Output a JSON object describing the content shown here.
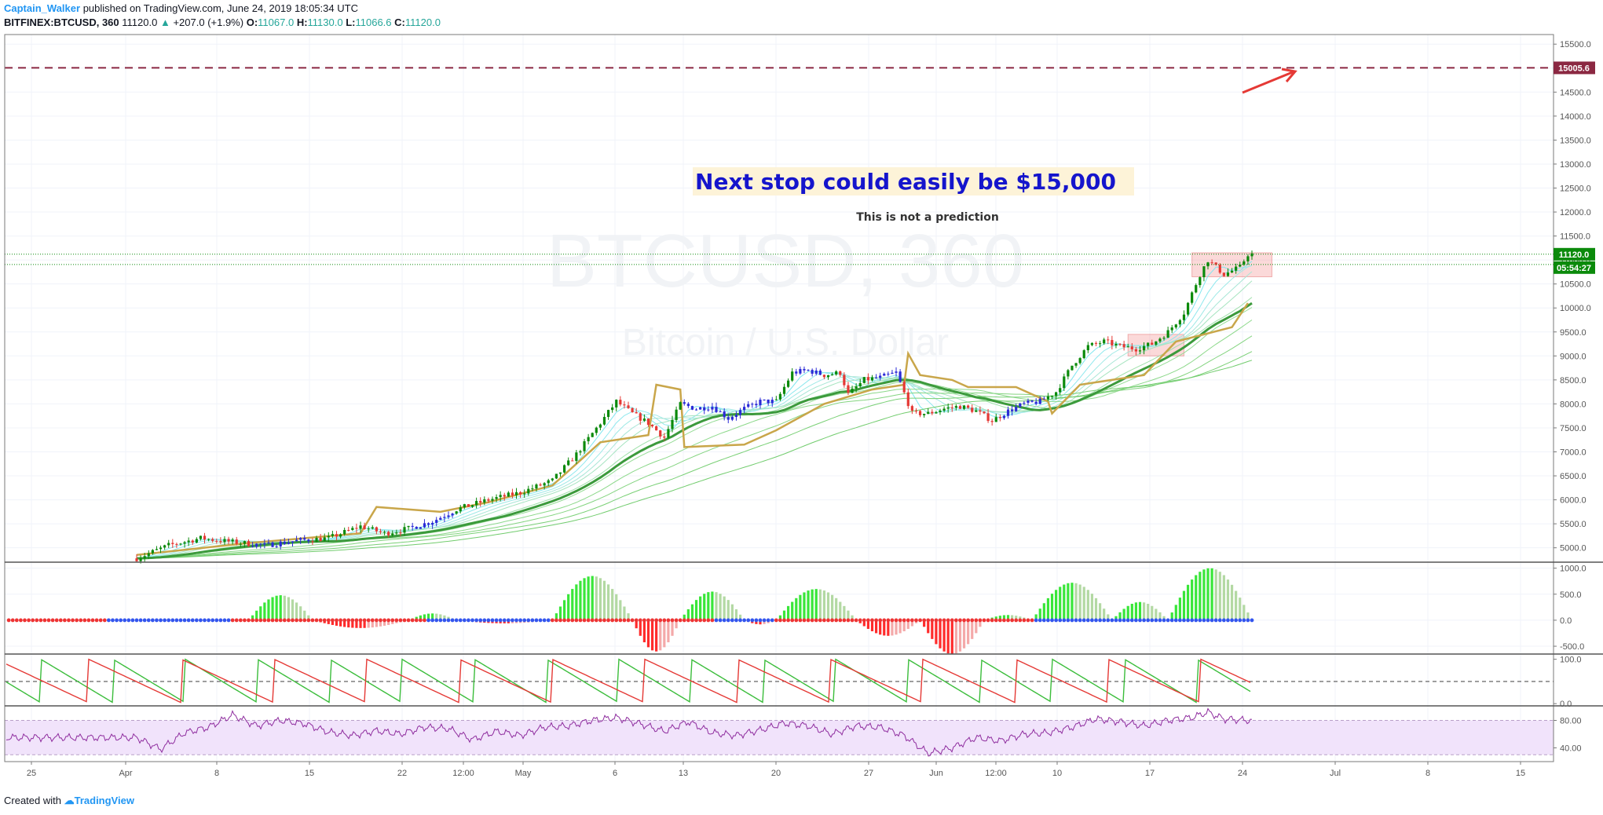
{
  "header": {
    "author": "Captain_Walker",
    "published": "published on TradingView.com, June 24, 2019 18:05:34 UTC",
    "symbol": "BITFINEX:BTCUSD, 360",
    "last": "11120.0",
    "change": "+207.0 (+1.9%)",
    "o_label": "O:",
    "o": "11067.0",
    "h_label": "H:",
    "h": "11130.0",
    "l_label": "L:",
    "l": "11066.6",
    "c_label": "C:",
    "c": "11120.0"
  },
  "footer": {
    "created_with": "Created with",
    "brand": "TradingView"
  },
  "colors": {
    "up": "#0b8a0b",
    "down": "#e53935",
    "blue": "#2b2bd6",
    "gold": "#c9a64a",
    "ema_dark": "#3c9a3c",
    "target": "#8b2842",
    "annotation": "#1515cc",
    "rsi_band": "#f1e3fb"
  },
  "chart_data": [
    {
      "type": "candlestick",
      "watermark_symbol": "BTCUSD, 360",
      "watermark_name": "Bitcoin / U.S. Dollar",
      "annotation_title": "Next stop could easily be $15,000",
      "annotation_sub": "This is not a prediction",
      "ylim": [
        4700,
        15700
      ],
      "y_ticks": [
        "5000.0",
        "5500.0",
        "6000.0",
        "6500.0",
        "7000.0",
        "7500.0",
        "8000.0",
        "8500.0",
        "9000.0",
        "9500.0",
        "10000.0",
        "10500.0",
        "11000.0",
        "11500.0",
        "12000.0",
        "12500.0",
        "13000.0",
        "13500.0",
        "14000.0",
        "14500.0",
        "15000.0",
        "15500.0"
      ],
      "target_level": 15005.6,
      "target_label": "15005.6",
      "price_label": "11120.0",
      "timer_label": "05:54:27",
      "price_line_2": 10905,
      "x_ticks": [
        "25",
        "Apr",
        "8",
        "15",
        "22",
        "12:00",
        "May",
        "6",
        "13",
        "20",
        "27",
        "Jun",
        "12:00",
        "10",
        "17",
        "24",
        "Jul",
        "8",
        "15"
      ],
      "trend": [
        {
          "t": 0,
          "v": 4780
        },
        {
          "t": 4,
          "v": 5050
        },
        {
          "t": 8,
          "v": 5200
        },
        {
          "t": 12,
          "v": 5120
        },
        {
          "t": 16,
          "v": 5050
        },
        {
          "t": 20,
          "v": 5150
        },
        {
          "t": 24,
          "v": 5200
        },
        {
          "t": 28,
          "v": 5450
        },
        {
          "t": 31,
          "v": 5300
        },
        {
          "t": 34,
          "v": 5400
        },
        {
          "t": 37,
          "v": 5550
        },
        {
          "t": 40,
          "v": 5800
        },
        {
          "t": 44,
          "v": 6000
        },
        {
          "t": 48,
          "v": 6150
        },
        {
          "t": 52,
          "v": 6400
        },
        {
          "t": 55,
          "v": 6950
        },
        {
          "t": 58,
          "v": 7600
        },
        {
          "t": 60,
          "v": 8050
        },
        {
          "t": 62,
          "v": 7800
        },
        {
          "t": 64,
          "v": 7600
        },
        {
          "t": 66,
          "v": 7300
        },
        {
          "t": 68,
          "v": 8000
        },
        {
          "t": 70,
          "v": 7900
        },
        {
          "t": 72,
          "v": 7950
        },
        {
          "t": 74,
          "v": 7700
        },
        {
          "t": 76,
          "v": 7900
        },
        {
          "t": 78,
          "v": 8050
        },
        {
          "t": 80,
          "v": 8050
        },
        {
          "t": 82,
          "v": 8650
        },
        {
          "t": 84,
          "v": 8700
        },
        {
          "t": 86,
          "v": 8600
        },
        {
          "t": 88,
          "v": 8650
        },
        {
          "t": 89,
          "v": 8200
        },
        {
          "t": 91,
          "v": 8500
        },
        {
          "t": 93,
          "v": 8550
        },
        {
          "t": 95,
          "v": 8650
        },
        {
          "t": 97,
          "v": 7800
        },
        {
          "t": 99,
          "v": 7800
        },
        {
          "t": 101,
          "v": 7900
        },
        {
          "t": 103,
          "v": 7950
        },
        {
          "t": 105,
          "v": 7850
        },
        {
          "t": 107,
          "v": 7650
        },
        {
          "t": 109,
          "v": 7850
        },
        {
          "t": 111,
          "v": 8000
        },
        {
          "t": 113,
          "v": 8050
        },
        {
          "t": 115,
          "v": 8250
        },
        {
          "t": 117,
          "v": 8800
        },
        {
          "t": 119,
          "v": 9200
        },
        {
          "t": 121,
          "v": 9300
        },
        {
          "t": 123,
          "v": 9200
        },
        {
          "t": 125,
          "v": 9150
        },
        {
          "t": 127,
          "v": 9250
        },
        {
          "t": 129,
          "v": 9500
        },
        {
          "t": 131,
          "v": 9900
        },
        {
          "t": 133,
          "v": 10700
        },
        {
          "t": 134,
          "v": 11000
        },
        {
          "t": 136,
          "v": 10700
        },
        {
          "t": 138,
          "v": 10850
        },
        {
          "t": 139,
          "v": 11120
        }
      ],
      "gold_line": [
        {
          "t": 0,
          "v": 4850
        },
        {
          "t": 14,
          "v": 5100
        },
        {
          "t": 28,
          "v": 5300
        },
        {
          "t": 30,
          "v": 5850
        },
        {
          "t": 38,
          "v": 5750
        },
        {
          "t": 44,
          "v": 5950
        },
        {
          "t": 52,
          "v": 6300
        },
        {
          "t": 58,
          "v": 7200
        },
        {
          "t": 64,
          "v": 7350
        },
        {
          "t": 65,
          "v": 8400
        },
        {
          "t": 68,
          "v": 8300
        },
        {
          "t": 68.5,
          "v": 7100
        },
        {
          "t": 76,
          "v": 7150
        },
        {
          "t": 80,
          "v": 7450
        },
        {
          "t": 86,
          "v": 8000
        },
        {
          "t": 92,
          "v": 8300
        },
        {
          "t": 96,
          "v": 8400
        },
        {
          "t": 96.5,
          "v": 9050
        },
        {
          "t": 98,
          "v": 8600
        },
        {
          "t": 102,
          "v": 8500
        },
        {
          "t": 104,
          "v": 8350
        },
        {
          "t": 110,
          "v": 8350
        },
        {
          "t": 114,
          "v": 8050
        },
        {
          "t": 114.5,
          "v": 7800
        },
        {
          "t": 118,
          "v": 8400
        },
        {
          "t": 126,
          "v": 8600
        },
        {
          "t": 130,
          "v": 9300
        },
        {
          "t": 137,
          "v": 9600
        },
        {
          "t": 139,
          "v": 10100
        }
      ],
      "red_boxes": [
        {
          "t0": 124,
          "t1": 131,
          "v0": 9000,
          "v1": 9450
        },
        {
          "t0": 132,
          "t1": 142,
          "v0": 10650,
          "v1": 11150
        }
      ]
    },
    {
      "type": "histogram",
      "y_ticks": [
        "1000.0",
        "500.0",
        "0.0",
        "-500.0"
      ],
      "ylim": [
        -650,
        1100
      ],
      "waves": [
        {
          "t0": 14,
          "t1": 22,
          "a": 480
        },
        {
          "t0": 22,
          "t1": 34,
          "a": -150
        },
        {
          "t0": 34,
          "t1": 40,
          "a": 130
        },
        {
          "t0": 40,
          "t1": 52,
          "a": -60
        },
        {
          "t0": 52,
          "t1": 62,
          "a": 850
        },
        {
          "t0": 62,
          "t1": 68,
          "a": -600
        },
        {
          "t0": 68,
          "t1": 76,
          "a": 550
        },
        {
          "t0": 76,
          "t1": 80,
          "a": -80
        },
        {
          "t0": 80,
          "t1": 90,
          "a": 600
        },
        {
          "t0": 90,
          "t1": 98,
          "a": -300
        },
        {
          "t0": 98,
          "t1": 106,
          "a": -650
        },
        {
          "t0": 106,
          "t1": 112,
          "a": 100
        },
        {
          "t0": 112,
          "t1": 122,
          "a": 720
        },
        {
          "t0": 122,
          "t1": 129,
          "a": 350
        },
        {
          "t0": 129,
          "t1": 139.5,
          "a": 1000
        }
      ]
    },
    {
      "type": "line",
      "y_ticks": [
        "100.0",
        "0.0"
      ],
      "ylim": [
        -5,
        110
      ],
      "mid_level": 50
    },
    {
      "type": "line",
      "y_ticks": [
        "80.00",
        "40.00"
      ],
      "ylim": [
        20,
        100
      ],
      "band": [
        30,
        80
      ],
      "rsi": [
        {
          "t": 0,
          "v": 55
        },
        {
          "t": 3,
          "v": 38
        },
        {
          "t": 6,
          "v": 62
        },
        {
          "t": 9,
          "v": 70
        },
        {
          "t": 12,
          "v": 88
        },
        {
          "t": 15,
          "v": 72
        },
        {
          "t": 18,
          "v": 80
        },
        {
          "t": 21,
          "v": 75
        },
        {
          "t": 24,
          "v": 63
        },
        {
          "t": 27,
          "v": 58
        },
        {
          "t": 30,
          "v": 65
        },
        {
          "t": 33,
          "v": 60
        },
        {
          "t": 36,
          "v": 70
        },
        {
          "t": 39,
          "v": 68
        },
        {
          "t": 42,
          "v": 52
        },
        {
          "t": 45,
          "v": 64
        },
        {
          "t": 48,
          "v": 58
        },
        {
          "t": 51,
          "v": 70
        },
        {
          "t": 54,
          "v": 72
        },
        {
          "t": 57,
          "v": 80
        },
        {
          "t": 60,
          "v": 84
        },
        {
          "t": 63,
          "v": 75
        },
        {
          "t": 66,
          "v": 64
        },
        {
          "t": 69,
          "v": 78
        },
        {
          "t": 72,
          "v": 62
        },
        {
          "t": 75,
          "v": 58
        },
        {
          "t": 78,
          "v": 66
        },
        {
          "t": 81,
          "v": 76
        },
        {
          "t": 84,
          "v": 72
        },
        {
          "t": 87,
          "v": 60
        },
        {
          "t": 90,
          "v": 72
        },
        {
          "t": 93,
          "v": 70
        },
        {
          "t": 96,
          "v": 58
        },
        {
          "t": 99,
          "v": 32
        },
        {
          "t": 102,
          "v": 40
        },
        {
          "t": 105,
          "v": 55
        },
        {
          "t": 108,
          "v": 50
        },
        {
          "t": 111,
          "v": 60
        },
        {
          "t": 114,
          "v": 62
        },
        {
          "t": 117,
          "v": 70
        },
        {
          "t": 120,
          "v": 82
        },
        {
          "t": 123,
          "v": 78
        },
        {
          "t": 126,
          "v": 72
        },
        {
          "t": 129,
          "v": 80
        },
        {
          "t": 132,
          "v": 84
        },
        {
          "t": 134,
          "v": 92
        },
        {
          "t": 136,
          "v": 82
        },
        {
          "t": 139,
          "v": 80
        }
      ]
    }
  ]
}
